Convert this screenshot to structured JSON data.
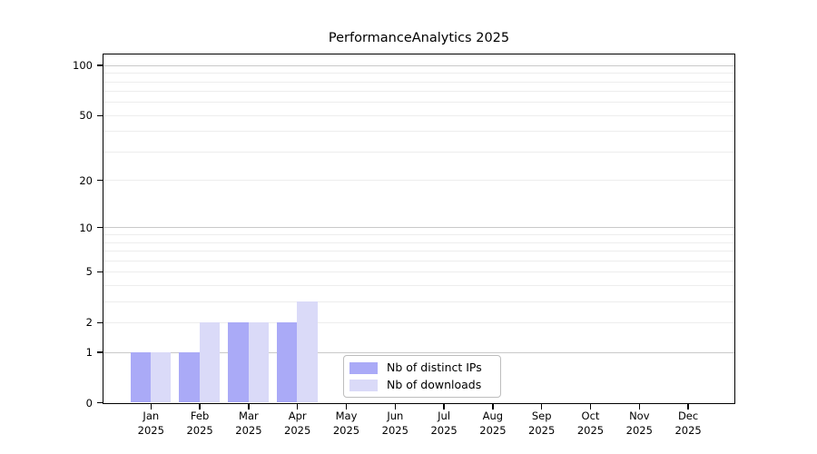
{
  "title": "PerformanceAnalytics 2025",
  "chart_data": {
    "type": "bar",
    "title": "PerformanceAnalytics 2025",
    "categories": [
      "Jan 2025",
      "Feb 2025",
      "Mar 2025",
      "Apr 2025",
      "May 2025",
      "Jun 2025",
      "Jul 2025",
      "Aug 2025",
      "Sep 2025",
      "Oct 2025",
      "Nov 2025",
      "Dec 2025"
    ],
    "x_tick_month": [
      "Jan",
      "Feb",
      "Mar",
      "Apr",
      "May",
      "Jun",
      "Jul",
      "Aug",
      "Sep",
      "Oct",
      "Nov",
      "Dec"
    ],
    "x_tick_year": "2025",
    "series": [
      {
        "name": "Nb of distinct IPs",
        "color": "#aaaaf7",
        "values": [
          1,
          1,
          2,
          2,
          0,
          0,
          0,
          0,
          0,
          0,
          0,
          0
        ]
      },
      {
        "name": "Nb of downloads",
        "color": "#dadaf8",
        "values": [
          1,
          2,
          2,
          3,
          0,
          0,
          0,
          0,
          0,
          0,
          0,
          0
        ]
      }
    ],
    "xlabel": "",
    "ylabel": "",
    "yscale": "log1p",
    "ylim": [
      0,
      116
    ],
    "yticks": [
      0,
      1,
      2,
      5,
      10,
      20,
      50,
      100
    ],
    "grid": true,
    "grid_major": [
      1,
      10,
      100
    ],
    "grid_minor": [
      2,
      3,
      4,
      5,
      6,
      7,
      8,
      9,
      20,
      30,
      40,
      50,
      60,
      70,
      80,
      90
    ],
    "legend_position": "inside-bottom-center"
  },
  "colors": {
    "frame": "#000000",
    "grid_major": "#c9c9c9",
    "grid_minor": "#ededed",
    "background": "#ffffff",
    "text": "#000000",
    "legend_border": "#bdbdbd"
  }
}
